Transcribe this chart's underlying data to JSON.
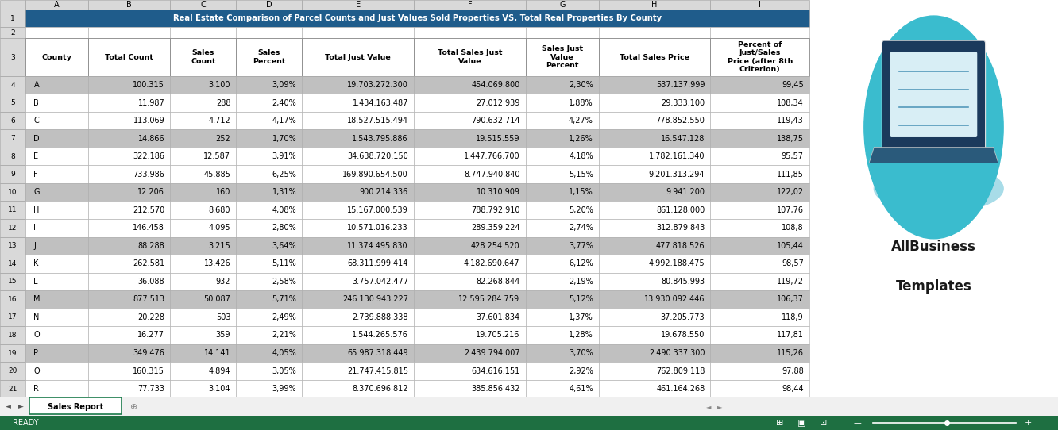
{
  "title": "Real Estate Comparison of Parcel Counts and Just Values Sold Properties VS. Total Real Properties By County",
  "title_bg": "#1F5C8B",
  "title_fg": "#FFFFFF",
  "headers": [
    "County",
    "Total Count",
    "Sales\nCount",
    "Sales\nPercent",
    "Total Just Value",
    "Total Sales Just\nValue",
    "Sales Just\nValue\nPercent",
    "Total Sales Price",
    "Percent of\nJust/Sales\nPrice (after 8th\nCriterion)"
  ],
  "col_widths_rel": [
    0.28,
    0.68,
    0.9,
    0.72,
    0.72,
    1.22,
    1.22,
    0.8,
    1.22,
    1.08
  ],
  "rows": [
    [
      "A",
      "100.315",
      "3.100",
      "3,09%",
      "19.703.272.300",
      "454.069.800",
      "2,30%",
      "537.137.999",
      "99,45"
    ],
    [
      "B",
      "11.987",
      "288",
      "2,40%",
      "1.434.163.487",
      "27.012.939",
      "1,88%",
      "29.333.100",
      "108,34"
    ],
    [
      "C",
      "113.069",
      "4.712",
      "4,17%",
      "18.527.515.494",
      "790.632.714",
      "4,27%",
      "778.852.550",
      "119,43"
    ],
    [
      "D",
      "14.866",
      "252",
      "1,70%",
      "1.543.795.886",
      "19.515.559",
      "1,26%",
      "16.547.128",
      "138,75"
    ],
    [
      "E",
      "322.186",
      "12.587",
      "3,91%",
      "34.638.720.150",
      "1.447.766.700",
      "4,18%",
      "1.782.161.340",
      "95,57"
    ],
    [
      "F",
      "733.986",
      "45.885",
      "6,25%",
      "169.890.654.500",
      "8.747.940.840",
      "5,15%",
      "9.201.313.294",
      "111,85"
    ],
    [
      "G",
      "12.206",
      "160",
      "1,31%",
      "900.214.336",
      "10.310.909",
      "1,15%",
      "9.941.200",
      "122,02"
    ],
    [
      "H",
      "212.570",
      "8.680",
      "4,08%",
      "15.167.000.539",
      "788.792.910",
      "5,20%",
      "861.128.000",
      "107,76"
    ],
    [
      "I",
      "146.458",
      "4.095",
      "2,80%",
      "10.571.016.233",
      "289.359.224",
      "2,74%",
      "312.879.843",
      "108,8"
    ],
    [
      "J",
      "88.288",
      "3.215",
      "3,64%",
      "11.374.495.830",
      "428.254.520",
      "3,77%",
      "477.818.526",
      "105,44"
    ],
    [
      "K",
      "262.581",
      "13.426",
      "5,11%",
      "68.311.999.414",
      "4.182.690.647",
      "6,12%",
      "4.992.188.475",
      "98,57"
    ],
    [
      "L",
      "36.088",
      "932",
      "2,58%",
      "3.757.042.477",
      "82.268.844",
      "2,19%",
      "80.845.993",
      "119,72"
    ],
    [
      "M",
      "877.513",
      "50.087",
      "5,71%",
      "246.130.943.227",
      "12.595.284.759",
      "5,12%",
      "13.930.092.446",
      "106,37"
    ],
    [
      "N",
      "20.228",
      "503",
      "2,49%",
      "2.739.888.338",
      "37.601.834",
      "1,37%",
      "37.205.773",
      "118,9"
    ],
    [
      "O",
      "16.277",
      "359",
      "2,21%",
      "1.544.265.576",
      "19.705.216",
      "1,28%",
      "19.678.550",
      "117,81"
    ],
    [
      "P",
      "349.476",
      "14.141",
      "4,05%",
      "65.987.318.449",
      "2.439.794.007",
      "3,70%",
      "2.490.337.300",
      "115,26"
    ],
    [
      "Q",
      "160.315",
      "4.894",
      "3,05%",
      "21.747.415.815",
      "634.616.151",
      "2,92%",
      "762.809.118",
      "97,88"
    ],
    [
      "R",
      "77.733",
      "3.104",
      "3,99%",
      "8.370.696.812",
      "385.856.432",
      "4,61%",
      "461.164.268",
      "98,44"
    ]
  ],
  "gray_row_indices": [
    0,
    3,
    6,
    9,
    12,
    15
  ],
  "gray_bg": "#C0C0C0",
  "white_bg": "#FFFFFF",
  "excel_hdr_bg": "#D9D9D9",
  "border_color": "#AAAAAA",
  "tab_color": "#1A7A4A",
  "logo_teal": "#3ABCCE",
  "logo_text1": "AllBusiness",
  "logo_text2": "Templates",
  "excel_col_letters": [
    "A",
    "B",
    "C",
    "D",
    "E",
    "F",
    "G",
    "H",
    "I"
  ],
  "status_green": "#1E6F41"
}
